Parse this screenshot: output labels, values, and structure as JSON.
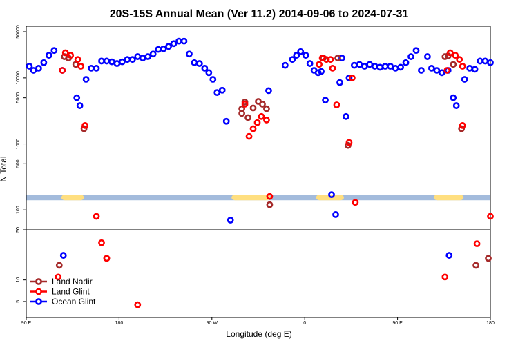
{
  "chart_data": {
    "type": "scatter",
    "title": "20S-15S Annual Mean (Ver 11.2)   2014-09-06 to 2024-07-31",
    "xlabel": "Longitude (deg E)",
    "ylabel": "N Total",
    "x_ticks": [
      {
        "lon": 90,
        "label": "90 E"
      },
      {
        "lon": 180,
        "label": "180"
      },
      {
        "lon": 270,
        "label": "90 W"
      },
      {
        "lon": 360,
        "label": "0"
      },
      {
        "lon": 450,
        "label": "90 E"
      },
      {
        "lon": 540,
        "label": "180"
      }
    ],
    "xlim": [
      90,
      540
    ],
    "y_scale": "log",
    "upper_panel": {
      "ylim": [
        50,
        50000
      ],
      "ticks": [
        {
          "value": 50000,
          "label": "50000"
        },
        {
          "value": 10000,
          "label": "10000"
        },
        {
          "value": 5000,
          "label": "5000"
        },
        {
          "value": 1000,
          "label": "1000"
        },
        {
          "value": 500,
          "label": "500"
        },
        {
          "value": 100,
          "label": "100"
        },
        {
          "value": 50,
          "label": "50"
        }
      ]
    },
    "lower_panel": {
      "ylim": [
        3,
        50
      ],
      "ticks": [
        {
          "value": 50,
          "label": "50"
        },
        {
          "value": 10,
          "label": "10"
        },
        {
          "value": 5,
          "label": "5"
        }
      ]
    },
    "land_sea_band": {
      "y_low": 140,
      "y_high": 170,
      "ocean_color": "#a3bbdc",
      "land_color": "#ffdf80",
      "land_segments": [
        [
          124,
          146
        ],
        [
          289,
          327
        ],
        [
          371,
          398
        ],
        [
          485,
          514
        ]
      ]
    },
    "legend_position": "bottom-left",
    "series": [
      {
        "name": "Land Nadir",
        "color": "#a52a2a",
        "points": [
          {
            "x": 127,
            "y": 21000
          },
          {
            "x": 131,
            "y": 20000
          },
          {
            "x": 138,
            "y": 16000
          },
          {
            "x": 146,
            "y": 1700
          },
          {
            "x": 299,
            "y": 2900
          },
          {
            "x": 299,
            "y": 3400
          },
          {
            "x": 302,
            "y": 4300
          },
          {
            "x": 305,
            "y": 2500
          },
          {
            "x": 310,
            "y": 3500
          },
          {
            "x": 315,
            "y": 4400
          },
          {
            "x": 319,
            "y": 4000
          },
          {
            "x": 323,
            "y": 3400
          },
          {
            "x": 326,
            "y": 120
          },
          {
            "x": 378,
            "y": 20000
          },
          {
            "x": 392,
            "y": 20000
          },
          {
            "x": 402,
            "y": 950
          },
          {
            "x": 496,
            "y": 21000
          },
          {
            "x": 499,
            "y": 21500
          },
          {
            "x": 504,
            "y": 16000
          },
          {
            "x": 512,
            "y": 1700
          },
          {
            "x": 122,
            "y": 16
          },
          {
            "x": 168,
            "y": 20
          },
          {
            "x": 526,
            "y": 16
          },
          {
            "x": 538,
            "y": 20
          }
        ]
      },
      {
        "name": "Land Glint",
        "color": "#ff0000",
        "points": [
          {
            "x": 125,
            "y": 13000
          },
          {
            "x": 128,
            "y": 24000
          },
          {
            "x": 133,
            "y": 22000
          },
          {
            "x": 140,
            "y": 19000
          },
          {
            "x": 143,
            "y": 15000
          },
          {
            "x": 147,
            "y": 1900
          },
          {
            "x": 158,
            "y": 80
          },
          {
            "x": 302,
            "y": 4000
          },
          {
            "x": 306,
            "y": 1300
          },
          {
            "x": 310,
            "y": 1700
          },
          {
            "x": 314,
            "y": 2100
          },
          {
            "x": 318,
            "y": 2600
          },
          {
            "x": 323,
            "y": 2300
          },
          {
            "x": 326,
            "y": 160
          },
          {
            "x": 374,
            "y": 16000
          },
          {
            "x": 377,
            "y": 20000
          },
          {
            "x": 381,
            "y": 19000
          },
          {
            "x": 385,
            "y": 19000
          },
          {
            "x": 387,
            "y": 14000
          },
          {
            "x": 391,
            "y": 3900
          },
          {
            "x": 403,
            "y": 1050
          },
          {
            "x": 406,
            "y": 10000
          },
          {
            "x": 409,
            "y": 130
          },
          {
            "x": 498,
            "y": 13000
          },
          {
            "x": 501,
            "y": 24000
          },
          {
            "x": 506,
            "y": 22000
          },
          {
            "x": 510,
            "y": 19000
          },
          {
            "x": 513,
            "y": 15000
          },
          {
            "x": 513,
            "y": 1900
          },
          {
            "x": 540,
            "y": 80
          },
          {
            "x": 121,
            "y": 11
          },
          {
            "x": 163,
            "y": 33
          },
          {
            "x": 168,
            "y": 20
          },
          {
            "x": 198,
            "y": 4.5
          },
          {
            "x": 496,
            "y": 11
          },
          {
            "x": 527,
            "y": 32
          }
        ]
      },
      {
        "name": "Ocean Glint",
        "color": "#0000ff",
        "points": [
          {
            "x": 93,
            "y": 15000
          },
          {
            "x": 97,
            "y": 13000
          },
          {
            "x": 102,
            "y": 14000
          },
          {
            "x": 107,
            "y": 17000
          },
          {
            "x": 112,
            "y": 22000
          },
          {
            "x": 117,
            "y": 26000
          },
          {
            "x": 125,
            "y": 13000
          },
          {
            "x": 139,
            "y": 5000
          },
          {
            "x": 142,
            "y": 3800
          },
          {
            "x": 148,
            "y": 9500
          },
          {
            "x": 153,
            "y": 14000
          },
          {
            "x": 158,
            "y": 14000
          },
          {
            "x": 163,
            "y": 18000
          },
          {
            "x": 168,
            "y": 18000
          },
          {
            "x": 173,
            "y": 17500
          },
          {
            "x": 178,
            "y": 16500
          },
          {
            "x": 183,
            "y": 17500
          },
          {
            "x": 188,
            "y": 19000
          },
          {
            "x": 193,
            "y": 19000
          },
          {
            "x": 198,
            "y": 21000
          },
          {
            "x": 203,
            "y": 20000
          },
          {
            "x": 208,
            "y": 21000
          },
          {
            "x": 213,
            "y": 23000
          },
          {
            "x": 218,
            "y": 27000
          },
          {
            "x": 223,
            "y": 27500
          },
          {
            "x": 228,
            "y": 30000
          },
          {
            "x": 233,
            "y": 33000
          },
          {
            "x": 238,
            "y": 36000
          },
          {
            "x": 243,
            "y": 36000
          },
          {
            "x": 248,
            "y": 23000
          },
          {
            "x": 253,
            "y": 17000
          },
          {
            "x": 258,
            "y": 16500
          },
          {
            "x": 263,
            "y": 14000
          },
          {
            "x": 267,
            "y": 12000
          },
          {
            "x": 271,
            "y": 9500
          },
          {
            "x": 275,
            "y": 6000
          },
          {
            "x": 280,
            "y": 6500
          },
          {
            "x": 284,
            "y": 2200
          },
          {
            "x": 288,
            "y": 70
          },
          {
            "x": 325,
            "y": 6400
          },
          {
            "x": 341,
            "y": 15500
          },
          {
            "x": 348,
            "y": 19000
          },
          {
            "x": 352,
            "y": 22000
          },
          {
            "x": 356,
            "y": 25000
          },
          {
            "x": 361,
            "y": 22000
          },
          {
            "x": 365,
            "y": 16500
          },
          {
            "x": 369,
            "y": 13000
          },
          {
            "x": 373,
            "y": 12000
          },
          {
            "x": 376,
            "y": 12500
          },
          {
            "x": 380,
            "y": 4600
          },
          {
            "x": 386,
            "y": 170
          },
          {
            "x": 390,
            "y": 85
          },
          {
            "x": 394,
            "y": 8500
          },
          {
            "x": 396,
            "y": 20000
          },
          {
            "x": 400,
            "y": 2600
          },
          {
            "x": 403,
            "y": 10000
          },
          {
            "x": 408,
            "y": 15500
          },
          {
            "x": 413,
            "y": 16000
          },
          {
            "x": 418,
            "y": 15000
          },
          {
            "x": 423,
            "y": 16000
          },
          {
            "x": 428,
            "y": 15000
          },
          {
            "x": 433,
            "y": 14500
          },
          {
            "x": 438,
            "y": 15000
          },
          {
            "x": 443,
            "y": 15000
          },
          {
            "x": 448,
            "y": 14000
          },
          {
            "x": 453,
            "y": 14500
          },
          {
            "x": 458,
            "y": 17000
          },
          {
            "x": 463,
            "y": 21000
          },
          {
            "x": 468,
            "y": 26000
          },
          {
            "x": 473,
            "y": 13000
          },
          {
            "x": 479,
            "y": 21000
          },
          {
            "x": 483,
            "y": 14000
          },
          {
            "x": 488,
            "y": 13000
          },
          {
            "x": 493,
            "y": 12000
          },
          {
            "x": 499,
            "y": 13000
          },
          {
            "x": 504,
            "y": 5000
          },
          {
            "x": 507,
            "y": 3800
          },
          {
            "x": 515,
            "y": 9500
          },
          {
            "x": 520,
            "y": 14000
          },
          {
            "x": 525,
            "y": 13500
          },
          {
            "x": 530,
            "y": 18000
          },
          {
            "x": 535,
            "y": 18000
          },
          {
            "x": 540,
            "y": 17000
          },
          {
            "x": 126,
            "y": 22
          },
          {
            "x": 500,
            "y": 22
          }
        ]
      }
    ]
  }
}
